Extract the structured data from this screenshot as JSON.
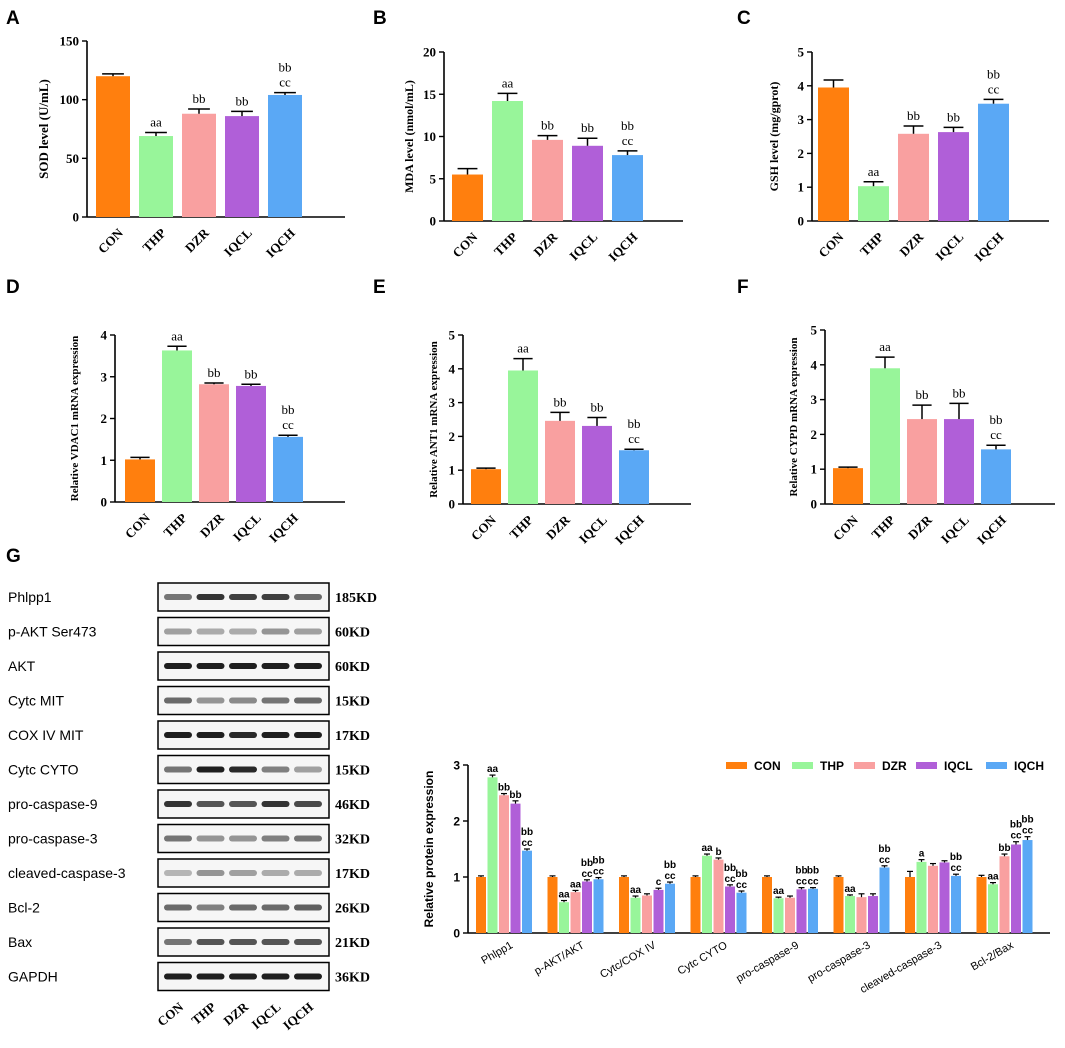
{
  "colors": {
    "CON": "#ff7f0e",
    "THP": "#98f59a",
    "DZR": "#f9a0a0",
    "IQCL": "#b05fd8",
    "IQCH": "#5aa8f5",
    "axis": "#000000"
  },
  "chart_data": [
    {
      "panel": "A",
      "type": "bar",
      "categories": [
        "CON",
        "THP",
        "DZR",
        "IQCL",
        "IQCH"
      ],
      "values": [
        120,
        69,
        88,
        86,
        104
      ],
      "errors": [
        2,
        3,
        4,
        4,
        2
      ],
      "annotations": [
        [],
        [
          "aa"
        ],
        [
          "bb"
        ],
        [
          "bb"
        ],
        [
          "bb",
          "cc"
        ]
      ],
      "ylabel": "SOD level (U/mL)",
      "ylim": [
        0,
        150
      ],
      "yticks": [
        0,
        50,
        100,
        150
      ]
    },
    {
      "panel": "B",
      "type": "bar",
      "categories": [
        "CON",
        "THP",
        "DZR",
        "IQCL",
        "IQCH"
      ],
      "values": [
        5.5,
        14.2,
        9.6,
        8.9,
        7.8
      ],
      "errors": [
        0.7,
        0.9,
        0.5,
        0.9,
        0.5
      ],
      "annotations": [
        [],
        [
          "aa"
        ],
        [
          "bb"
        ],
        [
          "bb"
        ],
        [
          "bb",
          "cc"
        ]
      ],
      "ylabel": "MDA level (nmol/mL)",
      "ylim": [
        0,
        20
      ],
      "yticks": [
        0,
        5,
        10,
        15,
        20
      ]
    },
    {
      "panel": "C",
      "type": "bar",
      "categories": [
        "CON",
        "THP",
        "DZR",
        "IQCL",
        "IQCH"
      ],
      "values": [
        3.95,
        1.03,
        2.58,
        2.63,
        3.47
      ],
      "errors": [
        0.22,
        0.13,
        0.23,
        0.14,
        0.13
      ],
      "annotations": [
        [],
        [
          "aa"
        ],
        [
          "bb"
        ],
        [
          "bb"
        ],
        [
          "bb",
          "cc"
        ]
      ],
      "ylabel": "GSH level (mg/gprot)",
      "ylim": [
        0,
        5
      ],
      "yticks": [
        0,
        1,
        2,
        3,
        4,
        5
      ]
    },
    {
      "panel": "D",
      "type": "bar",
      "categories": [
        "CON",
        "THP",
        "DZR",
        "IQCL",
        "IQCH"
      ],
      "values": [
        1.02,
        3.63,
        2.82,
        2.78,
        1.56
      ],
      "errors": [
        0.05,
        0.1,
        0.03,
        0.04,
        0.04
      ],
      "annotations": [
        [],
        [
          "aa"
        ],
        [
          "bb"
        ],
        [
          "bb"
        ],
        [
          "bb",
          "cc"
        ]
      ],
      "ylabel": "Relative VDAC1 mRNA expression",
      "ylim": [
        0,
        4
      ],
      "yticks": [
        0,
        1,
        2,
        3,
        4
      ]
    },
    {
      "panel": "E",
      "type": "bar",
      "categories": [
        "CON",
        "THP",
        "DZR",
        "IQCL",
        "IQCH"
      ],
      "values": [
        1.03,
        3.95,
        2.46,
        2.31,
        1.59
      ],
      "errors": [
        0.03,
        0.35,
        0.25,
        0.25,
        0.03
      ],
      "annotations": [
        [],
        [
          "aa"
        ],
        [
          "bb"
        ],
        [
          "bb"
        ],
        [
          "bb",
          "cc"
        ]
      ],
      "ylabel": "Relative ANT1 mRNA expression",
      "ylim": [
        0,
        5
      ],
      "yticks": [
        0,
        1,
        2,
        3,
        4,
        5
      ]
    },
    {
      "panel": "F",
      "type": "bar",
      "categories": [
        "CON",
        "THP",
        "DZR",
        "IQCL",
        "IQCH"
      ],
      "values": [
        1.03,
        3.9,
        2.44,
        2.44,
        1.57
      ],
      "errors": [
        0.03,
        0.32,
        0.4,
        0.45,
        0.12
      ],
      "annotations": [
        [],
        [
          "aa"
        ],
        [
          "bb"
        ],
        [
          "bb"
        ],
        [
          "bb",
          "cc"
        ]
      ],
      "ylabel": "Relative CYPD mRNA expression",
      "ylim": [
        0,
        5
      ],
      "yticks": [
        0,
        1,
        2,
        3,
        4,
        5
      ]
    },
    {
      "panel": "G",
      "type": "bar",
      "categories": [
        "Phlpp1",
        "p-AKT/AKT",
        "Cytc/COX IV",
        "Cytc CYTO",
        "pro-caspase-9",
        "pro-caspase-3",
        "cleaved-caspase-3",
        "Bcl-2/Bax"
      ],
      "series": [
        {
          "name": "CON",
          "values": [
            1.0,
            1.0,
            1.0,
            1.0,
            1.0,
            1.0,
            1.0,
            1.0
          ],
          "errors": [
            0.02,
            0.02,
            0.02,
            0.02,
            0.02,
            0.02,
            0.1,
            0.03
          ]
        },
        {
          "name": "THP",
          "values": [
            2.78,
            0.55,
            0.63,
            1.38,
            0.62,
            0.66,
            1.27,
            0.87
          ],
          "errors": [
            0.04,
            0.03,
            0.03,
            0.03,
            0.02,
            0.02,
            0.04,
            0.03
          ]
        },
        {
          "name": "DZR",
          "values": [
            2.46,
            0.73,
            0.67,
            1.31,
            0.63,
            0.64,
            1.2,
            1.37
          ],
          "errors": [
            0.03,
            0.03,
            0.03,
            0.03,
            0.03,
            0.06,
            0.04,
            0.04
          ]
        },
        {
          "name": "IQCL",
          "values": [
            2.31,
            0.92,
            0.77,
            0.83,
            0.78,
            0.66,
            1.26,
            1.58
          ],
          "errors": [
            0.05,
            0.03,
            0.03,
            0.03,
            0.03,
            0.04,
            0.03,
            0.05
          ]
        },
        {
          "name": "IQCH",
          "values": [
            1.47,
            0.96,
            0.88,
            0.72,
            0.79,
            1.17,
            1.02,
            1.66
          ],
          "errors": [
            0.03,
            0.03,
            0.03,
            0.03,
            0.02,
            0.03,
            0.03,
            0.06
          ]
        }
      ],
      "annotations": [
        [
          [],
          [
            "aa"
          ],
          [
            "bb"
          ],
          [
            "bb"
          ],
          [
            "bb",
            "cc"
          ]
        ],
        [
          [],
          [
            "aa"
          ],
          [
            "aa"
          ],
          [
            "bb",
            "cc"
          ],
          [
            "bb",
            "cc"
          ]
        ],
        [
          [],
          [
            "aa"
          ],
          [],
          [
            "c"
          ],
          [
            "bb",
            "cc"
          ]
        ],
        [
          [],
          [
            "aa"
          ],
          [
            "b"
          ],
          [
            "bb",
            "cc"
          ],
          [
            "bb",
            "cc"
          ]
        ],
        [
          [],
          [
            "aa"
          ],
          [],
          [
            "bb",
            "cc"
          ],
          [
            "bb",
            "cc"
          ]
        ],
        [
          [],
          [
            "aa"
          ],
          [],
          [],
          [
            "bb",
            "cc"
          ]
        ],
        [
          [],
          [
            "a"
          ],
          [],
          [],
          [
            "bb",
            "cc"
          ]
        ],
        [
          [],
          [
            "aa"
          ],
          [
            "bb"
          ],
          [
            "bb",
            "cc"
          ],
          [
            "bb",
            "cc"
          ]
        ]
      ],
      "ylabel": "Relative  protein expression",
      "ylim": [
        0,
        3
      ],
      "yticks": [
        0,
        1,
        2,
        3
      ],
      "legend": [
        "CON",
        "THP",
        "DZR",
        "IQCL",
        "IQCH"
      ],
      "legend_position": "top-right"
    }
  ],
  "blot": {
    "bands": [
      "Phlpp1",
      "p-AKT Ser473",
      "AKT",
      "Cytc MIT",
      "COX IV MIT",
      "Cytc CYTO",
      "pro-caspase-9",
      "pro-caspase-3",
      "cleaved-caspase-3",
      "Bcl-2",
      "Bax",
      "GAPDH"
    ],
    "sizes": [
      "185KD",
      "60KD",
      "60KD",
      "15KD",
      "17KD",
      "15KD",
      "46KD",
      "32KD",
      "17KD",
      "26KD",
      "21KD",
      "36KD"
    ],
    "intensities": [
      [
        0.55,
        0.85,
        0.8,
        0.8,
        0.6
      ],
      [
        0.35,
        0.3,
        0.3,
        0.4,
        0.35
      ],
      [
        0.95,
        0.95,
        0.95,
        0.95,
        0.95
      ],
      [
        0.6,
        0.4,
        0.45,
        0.55,
        0.6
      ],
      [
        0.95,
        0.95,
        0.9,
        0.95,
        0.95
      ],
      [
        0.55,
        0.95,
        0.9,
        0.5,
        0.35
      ],
      [
        0.85,
        0.7,
        0.7,
        0.85,
        0.75
      ],
      [
        0.55,
        0.4,
        0.4,
        0.5,
        0.55
      ],
      [
        0.25,
        0.4,
        0.35,
        0.3,
        0.3
      ],
      [
        0.6,
        0.5,
        0.6,
        0.6,
        0.65
      ],
      [
        0.55,
        0.7,
        0.7,
        0.7,
        0.7
      ],
      [
        0.95,
        0.95,
        0.95,
        0.95,
        0.95
      ]
    ],
    "lanes": [
      "CON",
      "THP",
      "DZR",
      "IQCL",
      "IQCH"
    ]
  }
}
